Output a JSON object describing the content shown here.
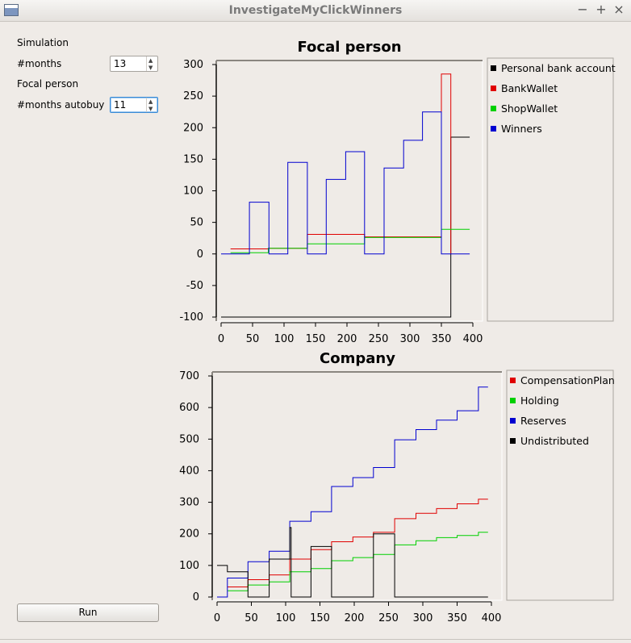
{
  "window": {
    "title": "InvestigateMyClickWinners"
  },
  "left_panel": {
    "simulation_label": "Simulation",
    "months_label": "#months",
    "months_value": "13",
    "focal_label": "Focal person",
    "autobuy_label": "#months autobuy",
    "autobuy_value": "11",
    "run_label": "Run"
  },
  "chart_data": [
    {
      "type": "line",
      "title": "Focal person",
      "xlim": [
        0,
        400
      ],
      "ylim": [
        -100,
        300
      ],
      "x_ticks": [
        0,
        50,
        100,
        150,
        200,
        250,
        300,
        350,
        400
      ],
      "y_ticks": [
        -100,
        -50,
        0,
        50,
        100,
        150,
        200,
        250,
        300
      ],
      "legend": "right",
      "series": [
        {
          "name": "Personal bank account",
          "color": "#000000",
          "x": [
            0,
            365,
            365,
            395
          ],
          "y": [
            -100,
            -100,
            185,
            185
          ]
        },
        {
          "name": "BankWallet",
          "color": "#e00000",
          "x": [
            15,
            75,
            75,
            137,
            137,
            228,
            228,
            350,
            350,
            365,
            365
          ],
          "y": [
            8,
            8,
            9,
            9,
            31,
            31,
            27,
            27,
            285,
            285,
            0
          ]
        },
        {
          "name": "ShopWallet",
          "color": "#00d000",
          "x": [
            15,
            75,
            75,
            137,
            137,
            228,
            228,
            350,
            350,
            395
          ],
          "y": [
            2,
            2,
            9,
            9,
            16,
            16,
            26,
            26,
            39,
            39
          ]
        },
        {
          "name": "Winners",
          "color": "#0000d0",
          "x": [
            0,
            45,
            45,
            76,
            76,
            106,
            106,
            137,
            137,
            167,
            167,
            198,
            198,
            228,
            228,
            259,
            259,
            290,
            290,
            320,
            320,
            350,
            350,
            395
          ],
          "y": [
            0,
            0,
            82,
            82,
            0,
            0,
            145,
            145,
            0,
            0,
            118,
            118,
            162,
            162,
            0,
            0,
            136,
            136,
            180,
            180,
            225,
            225,
            0,
            0
          ]
        }
      ]
    },
    {
      "type": "line",
      "title": "Company",
      "xlim": [
        0,
        400
      ],
      "ylim": [
        0,
        700
      ],
      "x_ticks": [
        0,
        50,
        100,
        150,
        200,
        250,
        300,
        350,
        400
      ],
      "y_ticks": [
        0,
        100,
        200,
        300,
        400,
        500,
        600,
        700
      ],
      "legend": "right",
      "series": [
        {
          "name": "CompensationPlan",
          "color": "#e00000",
          "x": [
            15,
            45,
            45,
            76,
            76,
            106,
            106,
            137,
            137,
            167,
            167,
            198,
            198,
            228,
            228,
            259,
            259,
            290,
            290,
            320,
            320,
            350,
            350,
            381,
            381,
            395
          ],
          "y": [
            32,
            32,
            55,
            55,
            70,
            70,
            120,
            120,
            150,
            150,
            175,
            175,
            190,
            190,
            205,
            205,
            248,
            248,
            265,
            265,
            280,
            280,
            295,
            295,
            310,
            310
          ]
        },
        {
          "name": "Holding",
          "color": "#00d000",
          "x": [
            15,
            45,
            45,
            76,
            76,
            106,
            106,
            137,
            137,
            167,
            167,
            198,
            198,
            228,
            228,
            259,
            259,
            290,
            290,
            320,
            320,
            350,
            350,
            381,
            381,
            395
          ],
          "y": [
            20,
            20,
            38,
            38,
            48,
            48,
            80,
            80,
            90,
            90,
            115,
            115,
            125,
            125,
            135,
            135,
            165,
            165,
            178,
            178,
            188,
            188,
            195,
            195,
            205,
            205
          ]
        },
        {
          "name": "Reserves",
          "color": "#0000d0",
          "x": [
            0,
            15,
            15,
            45,
            45,
            76,
            76,
            106,
            106,
            137,
            137,
            167,
            167,
            198,
            198,
            228,
            228,
            259,
            259,
            290,
            290,
            320,
            320,
            350,
            350,
            381,
            381,
            395
          ],
          "y": [
            0,
            0,
            60,
            60,
            112,
            112,
            145,
            145,
            240,
            240,
            270,
            270,
            350,
            350,
            378,
            378,
            410,
            410,
            498,
            498,
            530,
            530,
            560,
            560,
            590,
            590,
            665,
            665
          ]
        },
        {
          "name": "Undistributed",
          "color": "#000000",
          "x": [
            0,
            15,
            15,
            45,
            45,
            76,
            76,
            106,
            106,
            108,
            108,
            137,
            137,
            167,
            167,
            198,
            198,
            228,
            228,
            259,
            259,
            395
          ],
          "y": [
            100,
            100,
            80,
            80,
            0,
            0,
            120,
            120,
            220,
            220,
            0,
            0,
            160,
            160,
            0,
            0,
            0,
            0,
            200,
            200,
            0,
            0
          ]
        }
      ]
    }
  ]
}
